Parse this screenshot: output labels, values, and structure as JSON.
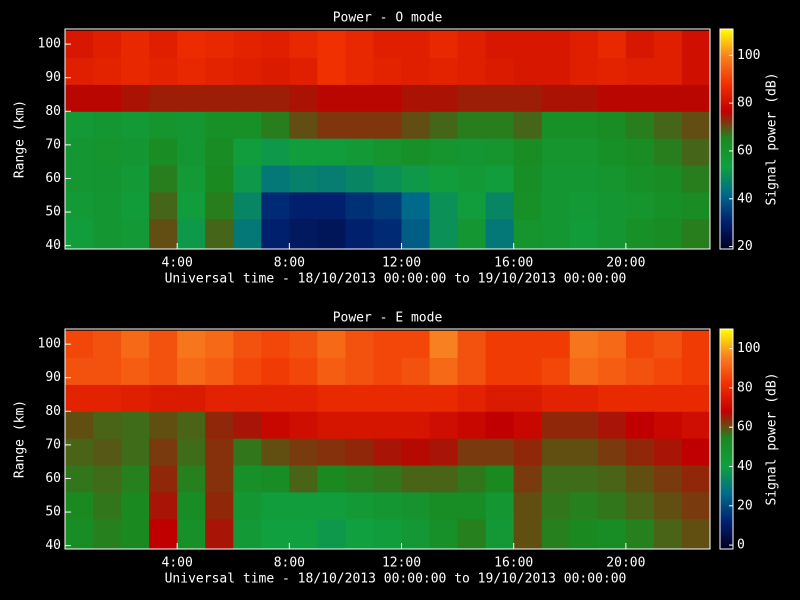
{
  "chart_data": [
    {
      "type": "heatmap",
      "title": "Power - O mode",
      "xlabel": "Universal time - 18/10/2013 00:00:00 to 19/10/2013 00:00:00",
      "ylabel": "Range (km)",
      "colorbar_label": "Signal power (dB)",
      "xlim": [
        0,
        23
      ],
      "ylim": [
        39,
        104.5
      ],
      "clim": [
        19,
        111
      ],
      "xticks": [
        {
          "value": 4,
          "label": "4:00"
        },
        {
          "value": 8,
          "label": "8:00"
        },
        {
          "value": 12,
          "label": "12:00"
        },
        {
          "value": 16,
          "label": "16:00"
        },
        {
          "value": 20,
          "label": "20:00"
        }
      ],
      "yticks": [
        40,
        50,
        60,
        70,
        80,
        90,
        100
      ],
      "cticks": [
        20,
        40,
        60,
        80,
        100
      ],
      "colormap": [
        "#000020",
        "#002070",
        "#006a8a",
        "#10a040",
        "#1a8a20",
        "#c00000",
        "#f03000",
        "#f88020",
        "#ffff00"
      ],
      "xbins": [
        0,
        1,
        2,
        3,
        4,
        5,
        6,
        7,
        8,
        9,
        10,
        11,
        12,
        13,
        14,
        15,
        16,
        17,
        18,
        19,
        20,
        21,
        22,
        23
      ],
      "ybins": [
        40,
        48,
        56,
        64,
        72,
        80,
        88,
        96,
        104
      ],
      "values": [
        [
          55,
          58,
          57,
          70,
          52,
          68,
          45,
          30,
          28,
          27,
          30,
          32,
          40,
          50,
          58,
          45,
          60,
          58,
          56,
          58,
          62,
          64,
          66
        ],
        [
          57,
          58,
          56,
          68,
          55,
          66,
          48,
          32,
          30,
          30,
          33,
          35,
          42,
          50,
          55,
          48,
          62,
          58,
          57,
          58,
          60,
          62,
          64
        ],
        [
          58,
          59,
          57,
          66,
          57,
          65,
          52,
          45,
          47,
          46,
          48,
          50,
          52,
          55,
          57,
          55,
          63,
          58,
          58,
          60,
          62,
          64,
          66
        ],
        [
          58,
          60,
          58,
          64,
          58,
          64,
          55,
          52,
          55,
          55,
          57,
          60,
          62,
          60,
          58,
          60,
          64,
          60,
          60,
          62,
          64,
          66,
          68
        ],
        [
          57,
          58,
          57,
          60,
          58,
          62,
          62,
          66,
          70,
          72,
          72,
          72,
          70,
          68,
          66,
          66,
          68,
          62,
          62,
          64,
          66,
          68,
          70
        ],
        [
          76,
          76,
          75,
          74,
          74,
          74,
          74,
          74,
          75,
          76,
          76,
          76,
          75,
          75,
          74,
          74,
          74,
          75,
          75,
          76,
          76,
          76,
          76
        ],
        [
          84,
          85,
          86,
          85,
          86,
          85,
          84,
          83,
          84,
          88,
          86,
          85,
          84,
          85,
          84,
          83,
          82,
          82,
          84,
          85,
          84,
          84,
          80
        ],
        [
          82,
          84,
          86,
          84,
          87,
          86,
          85,
          84,
          86,
          88,
          86,
          84,
          84,
          86,
          84,
          82,
          82,
          82,
          84,
          86,
          82,
          84,
          80
        ]
      ]
    },
    {
      "type": "heatmap",
      "title": "Power - E mode",
      "xlabel": "Universal time - 18/10/2013 00:00:00 to 19/10/2013 00:00:00",
      "ylabel": "Range (km)",
      "colorbar_label": "Signal power (dB)",
      "xlim": [
        0,
        23
      ],
      "ylim": [
        39,
        104.5
      ],
      "clim": [
        -2,
        110
      ],
      "xticks": [
        {
          "value": 4,
          "label": "4:00"
        },
        {
          "value": 8,
          "label": "8:00"
        },
        {
          "value": 12,
          "label": "12:00"
        },
        {
          "value": 16,
          "label": "16:00"
        },
        {
          "value": 20,
          "label": "20:00"
        }
      ],
      "yticks": [
        40,
        50,
        60,
        70,
        80,
        90,
        100
      ],
      "cticks": [
        0,
        20,
        40,
        60,
        80,
        100
      ],
      "colormap": [
        "#000020",
        "#002070",
        "#006a8a",
        "#10a040",
        "#1a8a20",
        "#c00000",
        "#f03000",
        "#f88020",
        "#ffff00"
      ],
      "xbins": [
        0,
        1,
        2,
        3,
        4,
        5,
        6,
        7,
        8,
        9,
        10,
        11,
        12,
        13,
        14,
        15,
        16,
        17,
        18,
        19,
        20,
        21,
        22,
        23
      ],
      "ybins": [
        40,
        48,
        56,
        64,
        72,
        80,
        88,
        96,
        104
      ],
      "values": [
        [
          52,
          55,
          54,
          68,
          50,
          66,
          44,
          40,
          40,
          38,
          40,
          42,
          45,
          50,
          55,
          45,
          60,
          55,
          54,
          52,
          55,
          58,
          60
        ],
        [
          54,
          56,
          54,
          66,
          52,
          64,
          46,
          42,
          42,
          42,
          44,
          46,
          48,
          52,
          52,
          46,
          60,
          56,
          55,
          56,
          58,
          60,
          62
        ],
        [
          56,
          57,
          55,
          64,
          55,
          63,
          50,
          52,
          58,
          54,
          55,
          56,
          58,
          58,
          56,
          54,
          62,
          57,
          57,
          58,
          60,
          62,
          64
        ],
        [
          58,
          59,
          57,
          62,
          57,
          63,
          56,
          60,
          62,
          63,
          64,
          66,
          67,
          66,
          62,
          62,
          64,
          60,
          60,
          62,
          64,
          66,
          68
        ],
        [
          60,
          58,
          57,
          60,
          58,
          64,
          66,
          70,
          72,
          74,
          74,
          74,
          74,
          72,
          70,
          68,
          70,
          64,
          64,
          66,
          68,
          70,
          72
        ],
        [
          78,
          78,
          77,
          76,
          76,
          78,
          78,
          78,
          78,
          80,
          80,
          80,
          80,
          80,
          78,
          76,
          76,
          78,
          78,
          80,
          80,
          80,
          80
        ],
        [
          88,
          88,
          90,
          88,
          92,
          90,
          86,
          84,
          86,
          90,
          88,
          86,
          88,
          92,
          88,
          84,
          84,
          86,
          92,
          90,
          88,
          86,
          84
        ],
        [
          86,
          88,
          92,
          88,
          94,
          92,
          88,
          86,
          88,
          92,
          88,
          86,
          86,
          96,
          88,
          84,
          84,
          84,
          94,
          92,
          86,
          88,
          84
        ]
      ]
    }
  ]
}
